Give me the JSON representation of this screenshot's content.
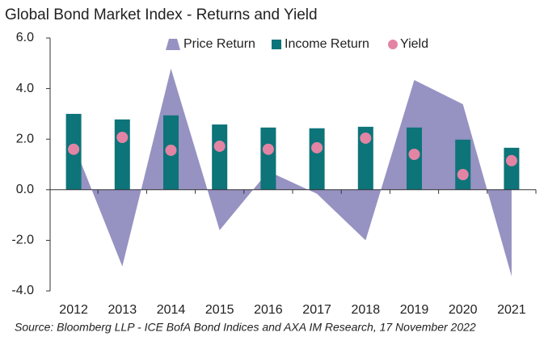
{
  "chart_data": {
    "type": "combo",
    "title": "Global Bond Market Index - Returns and Yield",
    "source": "Source: Bloomberg LLP - ICE BofA Bond Indices and AXA IM Research, 17 November 2022",
    "categories": [
      "2012",
      "2013",
      "2014",
      "2015",
      "2016",
      "2017",
      "2018",
      "2019",
      "2020",
      "2021"
    ],
    "series": [
      {
        "name": "Price Return",
        "type": "area",
        "color": "#9692c2",
        "values": [
          1.8,
          -3.03,
          4.79,
          -1.6,
          0.73,
          -0.16,
          -2.0,
          4.34,
          3.38,
          -3.42
        ]
      },
      {
        "name": "Income Return",
        "type": "bar",
        "color": "#0d7479",
        "values": [
          3.0,
          2.78,
          2.94,
          2.58,
          2.46,
          2.43,
          2.49,
          2.46,
          1.98,
          1.66
        ]
      },
      {
        "name": "Yield",
        "type": "scatter",
        "color": "#e384a5",
        "values": [
          1.6,
          2.07,
          1.56,
          1.72,
          1.6,
          1.66,
          2.04,
          1.4,
          0.6,
          1.15
        ]
      }
    ],
    "ylim": [
      -4,
      6
    ],
    "yticks": [
      {
        "value": -4,
        "label": "-4.0"
      },
      {
        "value": -2,
        "label": "-2.0"
      },
      {
        "value": 0,
        "label": "0.0"
      },
      {
        "value": 2,
        "label": "2.0"
      },
      {
        "value": 4,
        "label": "4.0"
      },
      {
        "value": 6,
        "label": "6.0"
      }
    ],
    "legend": "top"
  }
}
